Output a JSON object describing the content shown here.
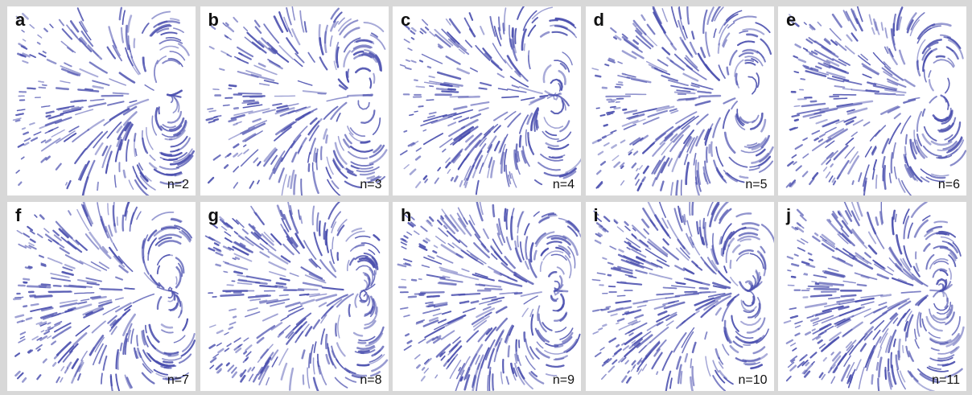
{
  "panels": [
    {
      "letter": "a",
      "label": "n=2"
    },
    {
      "letter": "b",
      "label": "n=3"
    },
    {
      "letter": "c",
      "label": "n=4"
    },
    {
      "letter": "d",
      "label": "n=5"
    },
    {
      "letter": "e",
      "label": "n=6"
    },
    {
      "letter": "f",
      "label": "n=7"
    },
    {
      "letter": "g",
      "label": "n=8"
    },
    {
      "letter": "h",
      "label": "n=9"
    },
    {
      "letter": "i",
      "label": "n=10"
    },
    {
      "letter": "j",
      "label": "n=11"
    }
  ]
}
